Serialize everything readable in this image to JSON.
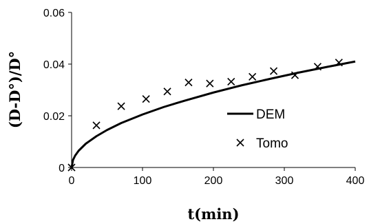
{
  "chart_data": {
    "type": "scatter",
    "title": "",
    "xlabel": "t(min)",
    "ylabel": "(D-D°)/D°",
    "xlim": [
      0,
      400
    ],
    "ylim": [
      0,
      0.06
    ],
    "x_ticks": [
      0,
      100,
      200,
      300,
      400
    ],
    "y_ticks": [
      0,
      0.02,
      0.04,
      0.06
    ],
    "x_tick_labels": [
      "0",
      "100",
      "200",
      "300",
      "400"
    ],
    "y_tick_labels": [
      "0",
      "0.02",
      "0.04",
      "0.06"
    ],
    "grid": false,
    "legend_position": "right",
    "series": [
      {
        "name": "DEM",
        "kind": "line",
        "color": "#000000",
        "x": [
          0,
          2,
          5,
          10,
          20,
          35,
          50,
          70,
          100,
          130,
          160,
          200,
          240,
          280,
          320,
          360,
          400
        ],
        "y": [
          0,
          0.0029,
          0.0046,
          0.0065,
          0.0092,
          0.0121,
          0.0145,
          0.0172,
          0.0205,
          0.0234,
          0.0259,
          0.029,
          0.0318,
          0.0343,
          0.0367,
          0.0389,
          0.041
        ]
      },
      {
        "name": "Tomo",
        "kind": "marker",
        "marker": "x",
        "color": "#000000",
        "x": [
          0,
          35,
          70,
          105,
          135,
          165,
          195,
          225,
          255,
          285,
          315,
          347,
          377
        ],
        "y": [
          0,
          0.0163,
          0.0237,
          0.0265,
          0.0294,
          0.0329,
          0.0325,
          0.0332,
          0.0351,
          0.0373,
          0.0357,
          0.039,
          0.0406
        ]
      }
    ]
  }
}
